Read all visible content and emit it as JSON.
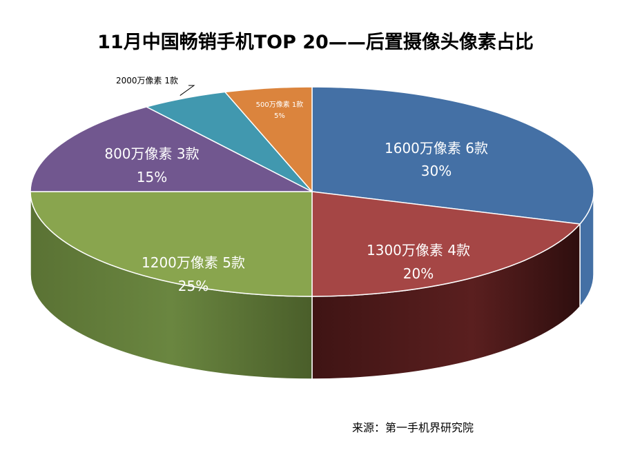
{
  "chart_data": {
    "type": "pie",
    "title": "11月中国畅销手机TOP 20——后置摄像头像素占比",
    "source": "来源：第一手机界研究院",
    "slices": [
      {
        "name": "1600万像素",
        "count_label": "6款",
        "count": 6,
        "percent": 30,
        "percent_label": "30%",
        "color": "#4470A5"
      },
      {
        "name": "1300万像素",
        "count_label": "4款",
        "count": 4,
        "percent": 20,
        "percent_label": "20%",
        "color": "#A54645"
      },
      {
        "name": "1200万像素",
        "count_label": "5款",
        "count": 5,
        "percent": 25,
        "percent_label": "25%",
        "color": "#89A54E"
      },
      {
        "name": "800万像素",
        "count_label": "3款",
        "count": 3,
        "percent": 15,
        "percent_label": "15%",
        "color": "#71578F"
      },
      {
        "name": "2000万像素",
        "count_label": "1款",
        "count": 1,
        "percent": 5,
        "percent_label": "",
        "color": "#4198AF"
      },
      {
        "name": "500万像素",
        "count_label": "1款",
        "count": 1,
        "percent": 5,
        "percent_label": "5%",
        "color": "#DB843D"
      }
    ]
  }
}
